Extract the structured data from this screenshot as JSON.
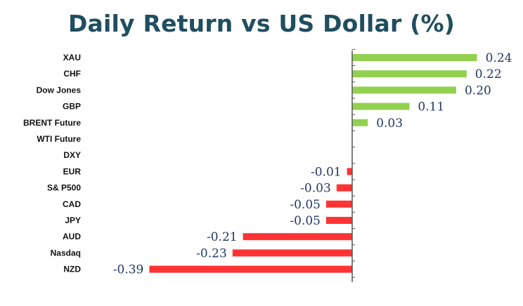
{
  "chart_data": {
    "type": "bar",
    "orientation": "horizontal",
    "title": "Daily Return vs US Dollar (%)",
    "categories": [
      "XAU",
      "CHF",
      "Dow Jones",
      "GBP",
      "BRENT Future",
      "WTI Future",
      "DXY",
      "EUR",
      "S& P500",
      "CAD",
      "JPY",
      "AUD",
      "Nasdaq",
      "NZD"
    ],
    "values": [
      0.24,
      0.22,
      0.2,
      0.11,
      0.03,
      0.0,
      0.0,
      -0.01,
      -0.03,
      -0.05,
      -0.05,
      -0.21,
      -0.23,
      -0.39
    ],
    "value_labels": [
      "0.24",
      "0.22",
      "0.20",
      "0.11",
      "0.03",
      "",
      "",
      "-0.01",
      "-0.03",
      "-0.05",
      "-0.05",
      "-0.21",
      "-0.23",
      "-0.39"
    ],
    "xlim": [
      -0.4,
      0.26
    ],
    "grid": false,
    "legend": "none",
    "colors": {
      "positive": "#92d050",
      "negative": "#ff3333",
      "axis": "#555555",
      "value_text": "#1f3864"
    }
  }
}
